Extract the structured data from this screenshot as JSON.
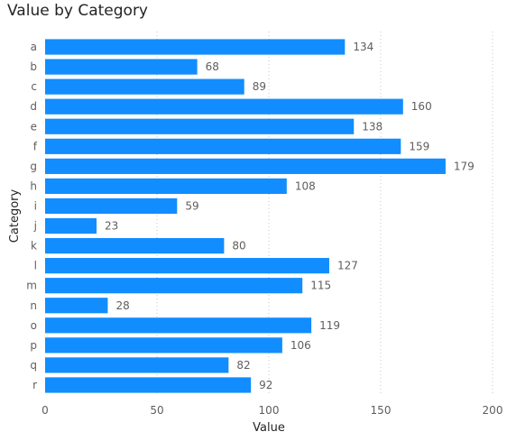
{
  "chart_data": {
    "type": "bar",
    "orientation": "horizontal",
    "title": "Value by Category",
    "xlabel": "Value",
    "ylabel": "Category",
    "categories": [
      "a",
      "b",
      "c",
      "d",
      "e",
      "f",
      "g",
      "h",
      "i",
      "j",
      "k",
      "l",
      "m",
      "n",
      "o",
      "p",
      "q",
      "r"
    ],
    "values": [
      134,
      68,
      89,
      160,
      138,
      159,
      179,
      108,
      59,
      23,
      80,
      127,
      115,
      28,
      119,
      106,
      82,
      92
    ],
    "xlim": [
      0,
      200
    ],
    "xticks": [
      0,
      50,
      100,
      150,
      200
    ],
    "grid": true,
    "data_labels": true,
    "bar_color": "#118DFF",
    "label_color": "#605E5C",
    "grid_color": "#C8C6C4",
    "title_color": "#252423"
  }
}
